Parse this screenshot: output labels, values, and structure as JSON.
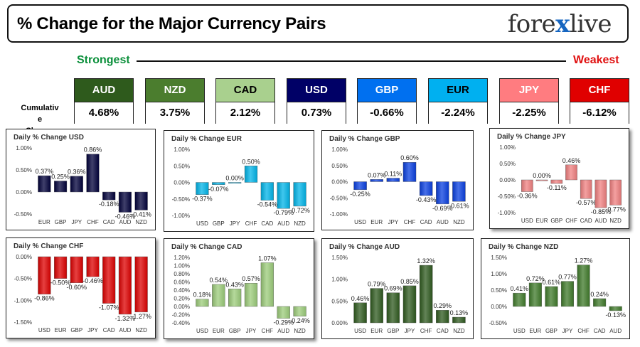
{
  "header": {
    "title": "% Change for the Major Currency Pairs",
    "logo_left": "fore",
    "logo_x": "x",
    "logo_right": "live"
  },
  "ranking": {
    "strongest_label": "Strongest",
    "weakest_label": "Weakest",
    "cumulative_label_line1": "Cumulativ e",
    "cumulative_label_line2": "Change",
    "currencies": [
      {
        "code": "AUD",
        "value": "4.68%",
        "color": "#2e5a1c",
        "text": "#ffffff"
      },
      {
        "code": "NZD",
        "value": "3.75%",
        "color": "#4b7d2e",
        "text": "#ffffff"
      },
      {
        "code": "CAD",
        "value": "2.12%",
        "color": "#a9d08e",
        "text": "#000000"
      },
      {
        "code": "USD",
        "value": "0.73%",
        "color": "#000066",
        "text": "#ffffff"
      },
      {
        "code": "GBP",
        "value": "-0.66%",
        "color": "#0070f0",
        "text": "#ffffff"
      },
      {
        "code": "EUR",
        "value": "-2.24%",
        "color": "#00b0f0",
        "text": "#000000"
      },
      {
        "code": "JPY",
        "value": "-2.25%",
        "color": "#ff7c80",
        "text": "#ffffff"
      },
      {
        "code": "CHF",
        "value": "-6.12%",
        "color": "#e00000",
        "text": "#ffffff"
      }
    ]
  },
  "chart_data": [
    {
      "type": "bar",
      "title": "Daily % Change USD",
      "categories": [
        "EUR",
        "GBP",
        "JPY",
        "CHF",
        "CAD",
        "AUD",
        "NZD"
      ],
      "values": [
        0.37,
        0.25,
        0.36,
        0.86,
        -0.18,
        -0.46,
        -0.41
      ],
      "labels": [
        "0.37%",
        "0.25%",
        "0.36%",
        "0.86%",
        "-0.18%",
        "-0.46%",
        "-0.41%"
      ],
      "yticks": [
        1.0,
        0.5,
        0.0,
        -0.5
      ],
      "ytick_labels": [
        "1.00%",
        "0.50%",
        "0.00%",
        "-0.50%"
      ],
      "ylim": [
        -0.5,
        1.0
      ],
      "color": "#00003a",
      "shadow": false
    },
    {
      "type": "bar",
      "title": "Daily % Change EUR",
      "categories": [
        "USD",
        "GBP",
        "JPY",
        "CHF",
        "CAD",
        "AUD",
        "NZD"
      ],
      "values": [
        -0.37,
        -0.07,
        0.0,
        0.5,
        -0.54,
        -0.79,
        -0.72
      ],
      "labels": [
        "-0.37%",
        "-0.07%",
        "0.00%",
        "0.50%",
        "-0.54%",
        "-0.79%",
        "-0.72%"
      ],
      "yticks": [
        1.0,
        0.5,
        0.0,
        -0.5,
        -1.0
      ],
      "ytick_labels": [
        "1.00%",
        "0.50%",
        "0.00%",
        "-0.50%",
        "-1.00%"
      ],
      "ylim": [
        -1.0,
        1.0
      ],
      "color": "#00b4e8",
      "shadow": false
    },
    {
      "type": "bar",
      "title": "Daily % Change GBP",
      "categories": [
        "USD",
        "EUR",
        "JPY",
        "CHF",
        "CAD",
        "AUD",
        "NZD"
      ],
      "values": [
        -0.25,
        0.07,
        0.11,
        0.6,
        -0.43,
        -0.69,
        -0.61
      ],
      "labels": [
        "-0.25%",
        "0.07%",
        "0.11%",
        "0.60%",
        "-0.43%",
        "-0.69%",
        "-0.61%"
      ],
      "yticks": [
        1.0,
        0.5,
        0.0,
        -0.5,
        -1.0
      ],
      "ytick_labels": [
        "1.00%",
        "0.50%",
        "0.00%",
        "-0.50%",
        "-1.00%"
      ],
      "ylim": [
        -1.0,
        1.0
      ],
      "color": "#0a3fe0",
      "shadow": false
    },
    {
      "type": "bar",
      "title": "Daily % Change JPY",
      "categories": [
        "USD",
        "EUR",
        "GBP",
        "CHF",
        "CAD",
        "AUD",
        "NZD"
      ],
      "values": [
        -0.36,
        0.0,
        -0.11,
        0.46,
        -0.57,
        -0.85,
        -0.77
      ],
      "labels": [
        "-0.36%",
        "0.00%",
        "-0.11%",
        "0.46%",
        "-0.57%",
        "-0.85%",
        "-0.77%"
      ],
      "yticks": [
        1.0,
        0.5,
        0.0,
        -0.5,
        -1.0
      ],
      "ytick_labels": [
        "1.00%",
        "0.50%",
        "0.00%",
        "-0.50%",
        "-1.00%"
      ],
      "ylim": [
        -1.0,
        1.0
      ],
      "color": "#f08080",
      "shadow": true
    },
    {
      "type": "bar",
      "title": "Daily % Change CHF",
      "categories": [
        "USD",
        "EUR",
        "GBP",
        "JPY",
        "CAD",
        "AUD",
        "NZD"
      ],
      "values": [
        -0.86,
        -0.5,
        -0.6,
        -0.46,
        -1.07,
        -1.32,
        -1.27
      ],
      "labels": [
        "-0.86%",
        "-0.50%",
        "-0.60%",
        "-0.46%",
        "-1.07%",
        "-1.32%",
        "-1.27%"
      ],
      "yticks": [
        0.0,
        -0.5,
        -1.0,
        -1.5
      ],
      "ytick_labels": [
        "0.00%",
        "-0.50%",
        "-1.00%",
        "-1.50%"
      ],
      "ylim": [
        -1.5,
        0.0
      ],
      "color": "#dd0000",
      "shadow": true
    },
    {
      "type": "bar",
      "title": "Daily % Change CAD",
      "categories": [
        "USD",
        "EUR",
        "GBP",
        "JPY",
        "CHF",
        "AUD",
        "NZD"
      ],
      "values": [
        0.18,
        0.54,
        0.43,
        0.57,
        1.07,
        -0.29,
        -0.24
      ],
      "labels": [
        "0.18%",
        "0.54%",
        "0.43%",
        "0.57%",
        "1.07%",
        "-0.29%",
        "-0.24%"
      ],
      "yticks": [
        1.2,
        1.0,
        0.8,
        0.6,
        0.4,
        0.2,
        0.0,
        -0.2,
        -0.4
      ],
      "ytick_labels": [
        "1.20%",
        "1.00%",
        "0.80%",
        "0.60%",
        "0.40%",
        "0.20%",
        "0.00%",
        "-0.20%",
        "-0.40%"
      ],
      "ylim": [
        -0.4,
        1.2
      ],
      "color": "#9ccc7a",
      "shadow": true
    },
    {
      "type": "bar",
      "title": "Daily % Change AUD",
      "categories": [
        "USD",
        "EUR",
        "GBP",
        "JPY",
        "CHF",
        "CAD",
        "NZD"
      ],
      "values": [
        0.46,
        0.79,
        0.69,
        0.85,
        1.32,
        0.29,
        0.13
      ],
      "labels": [
        "0.46%",
        "0.79%",
        "0.69%",
        "0.85%",
        "1.32%",
        "0.29%",
        "0.13%"
      ],
      "yticks": [
        1.5,
        1.0,
        0.5,
        0.0
      ],
      "ytick_labels": [
        "1.50%",
        "1.00%",
        "0.50%",
        "0.00%"
      ],
      "ylim": [
        0.0,
        1.5
      ],
      "color": "#2f5a1f",
      "shadow": false
    },
    {
      "type": "bar",
      "title": "Daily % Change NZD",
      "categories": [
        "USD",
        "EUR",
        "GBP",
        "JPY",
        "CHF",
        "CAD",
        "AUD"
      ],
      "values": [
        0.41,
        0.72,
        0.61,
        0.77,
        1.27,
        0.24,
        -0.13
      ],
      "labels": [
        "0.41%",
        "0.72%",
        "0.61%",
        "0.77%",
        "1.27%",
        "0.24%",
        "-0.13%"
      ],
      "yticks": [
        1.5,
        1.0,
        0.5,
        0.0,
        -0.5
      ],
      "ytick_labels": [
        "1.50%",
        "1.00%",
        "0.50%",
        "0.00%",
        "-0.50%"
      ],
      "ylim": [
        -0.5,
        1.5
      ],
      "color": "#3f7a2a",
      "shadow": false
    }
  ]
}
